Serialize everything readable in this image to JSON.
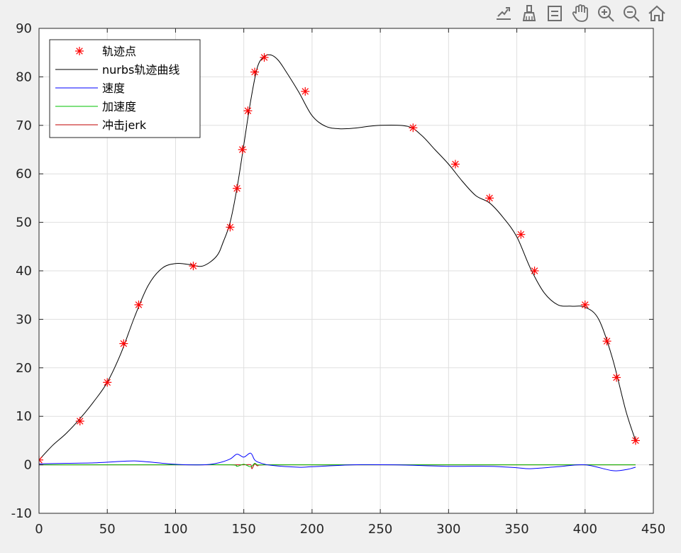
{
  "toolbar": {
    "buttons": [
      {
        "name": "export-icon"
      },
      {
        "name": "brush-icon"
      },
      {
        "name": "legend-icon"
      },
      {
        "name": "pan-hand-icon"
      },
      {
        "name": "zoom-in-icon"
      },
      {
        "name": "zoom-out-icon"
      },
      {
        "name": "home-icon"
      }
    ],
    "icon_color": "#6e6e6e"
  },
  "chart_data": {
    "type": "line",
    "title": "",
    "xlabel": "",
    "ylabel": "",
    "xlim": [
      0,
      450
    ],
    "ylim": [
      -10,
      90
    ],
    "xticks": [
      0,
      50,
      100,
      150,
      200,
      250,
      300,
      350,
      400,
      450
    ],
    "yticks": [
      -10,
      0,
      10,
      20,
      30,
      40,
      50,
      60,
      70,
      80,
      90
    ],
    "grid": true,
    "legend_position": "top-left",
    "series": [
      {
        "name": "轨迹点",
        "kind": "marker",
        "marker": "asterisk",
        "color": "#ff0000",
        "x": [
          0,
          30,
          50,
          62,
          73,
          113,
          140,
          145,
          149,
          153,
          158,
          165,
          195,
          274,
          305,
          330,
          353,
          363,
          400,
          416,
          423,
          437
        ],
        "y": [
          1,
          9,
          17,
          25,
          33,
          41,
          49,
          57,
          65,
          73,
          81,
          84,
          77,
          69.5,
          62,
          55,
          47.5,
          40,
          33,
          25.5,
          18,
          5
        ]
      },
      {
        "name": "nurbs轨迹曲线",
        "kind": "line",
        "color": "#000000",
        "x": [
          0,
          10,
          20,
          30,
          40,
          50,
          60,
          70,
          80,
          90,
          100,
          110,
          120,
          130,
          135,
          140,
          145,
          150,
          155,
          160,
          165,
          170,
          175,
          180,
          190,
          200,
          210,
          220,
          230,
          250,
          270,
          280,
          290,
          300,
          310,
          320,
          330,
          340,
          350,
          360,
          370,
          380,
          390,
          400,
          410,
          420,
          430,
          437
        ],
        "y": [
          1,
          4,
          6.5,
          9.5,
          13,
          17,
          23,
          30.5,
          37,
          40.5,
          41.5,
          41.3,
          41,
          43,
          46,
          50,
          57,
          66,
          75,
          82,
          84.2,
          84.5,
          83.5,
          81.5,
          77,
          72,
          69.8,
          69.3,
          69.4,
          70,
          69.8,
          68,
          65,
          62,
          58.5,
          55.5,
          54,
          51,
          47,
          40.5,
          35.5,
          33,
          32.7,
          32.5,
          30,
          22,
          11,
          5
        ]
      },
      {
        "name": "速度",
        "kind": "line",
        "color": "#0000ff",
        "x": [
          0,
          20,
          40,
          60,
          70,
          80,
          100,
          120,
          130,
          140,
          145,
          150,
          155,
          158,
          162,
          170,
          190,
          200,
          230,
          260,
          300,
          330,
          350,
          360,
          380,
          400,
          420,
          430,
          437
        ],
        "y": [
          0.2,
          0.3,
          0.4,
          0.7,
          0.8,
          0.6,
          0.1,
          0.0,
          0.3,
          1.2,
          2.2,
          1.6,
          2.4,
          1.0,
          0.4,
          -0.1,
          -0.5,
          -0.4,
          0.0,
          0.0,
          -0.3,
          -0.3,
          -0.6,
          -0.8,
          -0.4,
          0.0,
          -1.2,
          -1.0,
          -0.5
        ]
      },
      {
        "name": "加速度",
        "kind": "line",
        "color": "#00c000",
        "x": [
          0,
          100,
          140,
          145,
          150,
          155,
          158,
          160,
          165,
          200,
          300,
          400,
          437
        ],
        "y": [
          0,
          0,
          0.0,
          -0.3,
          0.1,
          -0.4,
          0.3,
          0.0,
          0.0,
          0,
          0,
          0,
          0
        ]
      },
      {
        "name": "冲击jerk",
        "kind": "line",
        "color": "#c00000",
        "x": [
          0,
          100,
          140,
          150,
          155,
          156,
          158,
          160,
          165,
          200,
          300,
          400,
          437
        ],
        "y": [
          0,
          0,
          0,
          0,
          0.0,
          -0.8,
          0.2,
          -0.2,
          0.0,
          0,
          0,
          0,
          0
        ]
      }
    ]
  }
}
